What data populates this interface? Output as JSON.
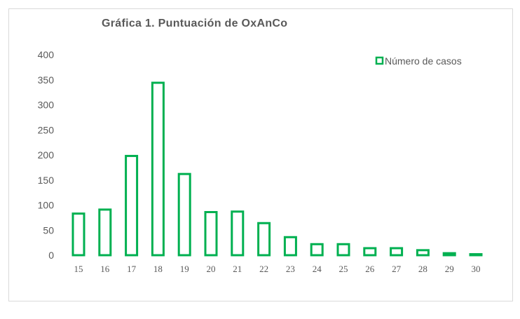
{
  "chart_data": {
    "type": "bar",
    "title": "Gráfica 1. Puntuación de OxAnCo",
    "xlabel": "",
    "ylabel": "",
    "categories": [
      "15",
      "16",
      "17",
      "18",
      "19",
      "20",
      "21",
      "22",
      "23",
      "24",
      "25",
      "26",
      "27",
      "28",
      "29",
      "30"
    ],
    "series": [
      {
        "name": "Número de casos",
        "values": [
          83,
          91,
          198,
          344,
          162,
          86,
          87,
          64,
          36,
          22,
          22,
          14,
          14,
          10,
          4,
          2
        ],
        "color": "#00b050"
      }
    ],
    "ylim": [
      0,
      400
    ],
    "yticks": [
      "0",
      "50",
      "100",
      "150",
      "200",
      "250",
      "300",
      "350",
      "400"
    ],
    "grid": false,
    "legend_position": "top-right"
  }
}
